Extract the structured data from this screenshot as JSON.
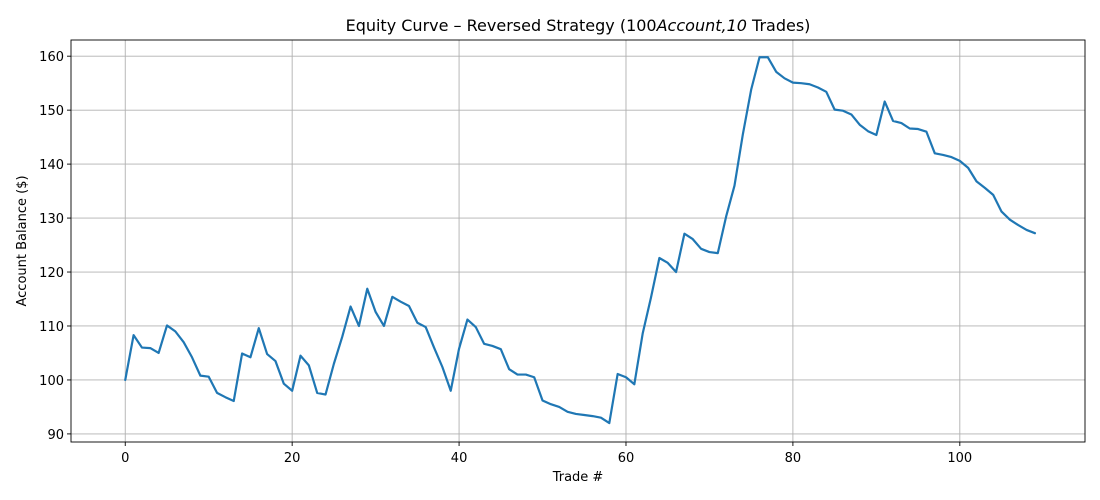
{
  "chart_data": {
    "type": "line",
    "title": "Equity Curve – Reversed Strategy (100Account,10 Trades)",
    "title_parts": {
      "before": "Equity Curve – Reversed Strategy (100",
      "italic": "Account",
      "middle": ",10",
      "after": " Trades)"
    },
    "xlabel": "Trade #",
    "ylabel": "Account Balance ($)",
    "xlim": [
      -6.5,
      115
    ],
    "ylim": [
      88.5,
      163
    ],
    "xticks": [
      0,
      20,
      40,
      60,
      80,
      100
    ],
    "yticks": [
      90,
      100,
      110,
      120,
      130,
      140,
      150,
      160
    ],
    "grid": true,
    "line_color": "#1f77b4",
    "series": [
      {
        "values": [
          100.0,
          108.3,
          106.0,
          105.9,
          105.0,
          110.1,
          109.0,
          107.0,
          104.2,
          100.8,
          100.6,
          97.6,
          96.8,
          96.1,
          104.9,
          104.2,
          109.6,
          104.8,
          103.5,
          99.3,
          98.0,
          104.5,
          102.7,
          97.6,
          97.3,
          103.0,
          108.0,
          113.6,
          110.0,
          116.9,
          112.6,
          110.0,
          115.4,
          114.5,
          113.7,
          110.6,
          109.8,
          106.0,
          102.4,
          98.0,
          105.8,
          111.2,
          109.8,
          106.7,
          106.3,
          105.7,
          102.0,
          101.0,
          101.0,
          100.5,
          96.2,
          95.5,
          95.0,
          94.1,
          93.7,
          93.5,
          93.3,
          93.0,
          92.0,
          101.1,
          100.5,
          99.2,
          108.6,
          115.3,
          122.6,
          121.7,
          120.0,
          127.1,
          126.1,
          124.3,
          123.7,
          123.5,
          130.3,
          136.0,
          145.5,
          153.8,
          159.8,
          159.8,
          157.1,
          155.9,
          155.1,
          155.0,
          154.8,
          154.2,
          153.4,
          150.1,
          149.9,
          149.2,
          147.3,
          146.1,
          145.4,
          151.6,
          148.0,
          147.6,
          146.6,
          146.5,
          146.0,
          142.0,
          141.7,
          141.3,
          140.6,
          139.3,
          136.8,
          135.6,
          134.3,
          131.2,
          129.7,
          128.7,
          127.8,
          127.2
        ]
      }
    ]
  }
}
